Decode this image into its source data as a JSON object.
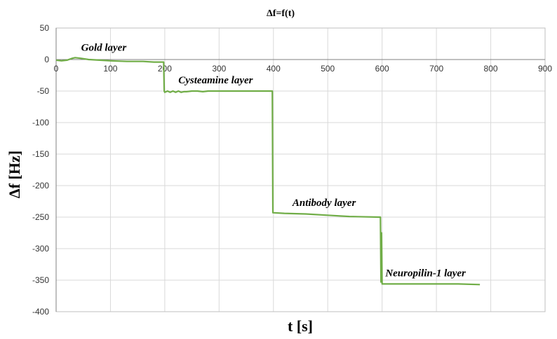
{
  "chart_data": {
    "type": "line",
    "title": "Δf=f(t)",
    "xlabel": "t [s]",
    "ylabel": "Δf [Hz]",
    "xlim": [
      0,
      900
    ],
    "ylim": [
      -400,
      50
    ],
    "x_ticks": [
      0,
      100,
      200,
      300,
      400,
      500,
      600,
      700,
      800,
      900
    ],
    "y_ticks": [
      50,
      0,
      -50,
      -100,
      -150,
      -200,
      -250,
      -300,
      -350,
      -400
    ],
    "x_tick_labels": [
      "0",
      "100",
      "200",
      "300",
      "400",
      "500",
      "600",
      "700",
      "800",
      "900"
    ],
    "y_tick_labels": [
      "50",
      "0",
      "-50",
      "-100",
      "-150",
      "-200",
      "-250",
      "-300",
      "-350",
      "-400"
    ],
    "grid": true,
    "x_axis_at_y": 0,
    "series": [
      {
        "color": "#70ad47",
        "points": [
          [
            0,
            -1
          ],
          [
            10,
            -2
          ],
          [
            20,
            -1
          ],
          [
            30,
            2
          ],
          [
            35,
            3
          ],
          [
            45,
            2
          ],
          [
            60,
            0
          ],
          [
            80,
            -1
          ],
          [
            100,
            -2
          ],
          [
            130,
            -3
          ],
          [
            160,
            -3
          ],
          [
            180,
            -4
          ],
          [
            198,
            -4
          ],
          [
            199,
            -50
          ],
          [
            200,
            -52
          ],
          [
            205,
            -50
          ],
          [
            210,
            -52
          ],
          [
            215,
            -50
          ],
          [
            220,
            -52
          ],
          [
            225,
            -50
          ],
          [
            230,
            -52
          ],
          [
            235,
            -51
          ],
          [
            240,
            -51
          ],
          [
            250,
            -50
          ],
          [
            260,
            -50
          ],
          [
            270,
            -51
          ],
          [
            280,
            -50
          ],
          [
            300,
            -50
          ],
          [
            320,
            -50
          ],
          [
            340,
            -50
          ],
          [
            360,
            -50
          ],
          [
            380,
            -50
          ],
          [
            398,
            -50
          ],
          [
            399,
            -243
          ],
          [
            420,
            -244
          ],
          [
            460,
            -245
          ],
          [
            500,
            -247
          ],
          [
            540,
            -249
          ],
          [
            595,
            -250
          ],
          [
            597,
            -250
          ],
          [
            598,
            -353
          ],
          [
            599,
            -275
          ],
          [
            600,
            -356
          ],
          [
            620,
            -356
          ],
          [
            660,
            -356
          ],
          [
            700,
            -356
          ],
          [
            740,
            -356
          ],
          [
            780,
            -357
          ]
        ]
      }
    ],
    "annotations": [
      {
        "text": "Gold layer",
        "x": 46,
        "y": 14
      },
      {
        "text": "Cysteamine layer",
        "x": 225,
        "y": -38
      },
      {
        "text": "Antibody layer",
        "x": 435,
        "y": -232
      },
      {
        "text": "Neuropilin-1 layer",
        "x": 606,
        "y": -344
      }
    ]
  },
  "colors": {
    "gridline": "#d9d9d9",
    "axis": "#808080",
    "plot_border": "#bfbfbf"
  }
}
